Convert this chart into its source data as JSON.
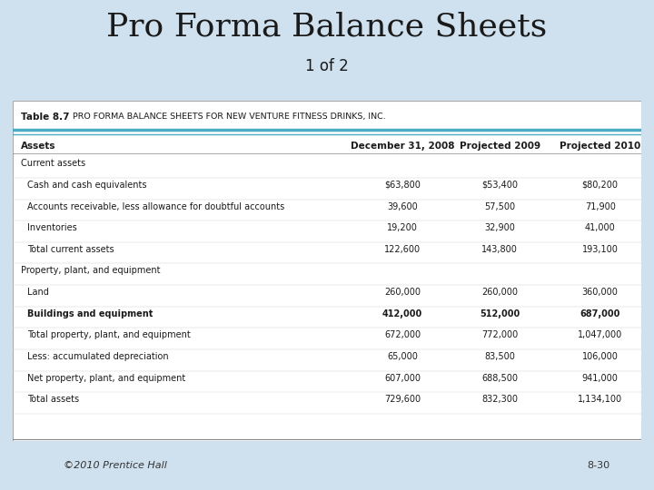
{
  "title": "Pro Forma Balance Sheets",
  "subtitle": "1 of 2",
  "table_label": "Table 8.7",
  "table_title": "Pro Forma Balance Sheets for New Venture Fitness Drinks, Inc.",
  "col_headers": [
    "Assets",
    "December 31, 2008",
    "Projected 2009",
    "Projected 2010"
  ],
  "rows": [
    {
      "label": "Current assets",
      "vals": [
        "",
        "",
        ""
      ],
      "style": "section"
    },
    {
      "label": "Cash and cash equivalents",
      "vals": [
        "$63,800",
        "$53,400",
        "$80,200"
      ],
      "style": "dollar"
    },
    {
      "label": "Accounts receivable, less allowance for doubtful accounts",
      "vals": [
        "39,600",
        "57,500",
        "71,900"
      ],
      "style": "normal"
    },
    {
      "label": "Inventories",
      "vals": [
        "19,200",
        "32,900",
        "41,000"
      ],
      "style": "normal"
    },
    {
      "label": "Total current assets",
      "vals": [
        "122,600",
        "143,800",
        "193,100"
      ],
      "style": "total"
    },
    {
      "label": "Property, plant, and equipment",
      "vals": [
        "",
        "",
        ""
      ],
      "style": "section"
    },
    {
      "label": "Land",
      "vals": [
        "260,000",
        "260,000",
        "360,000"
      ],
      "style": "normal"
    },
    {
      "label": "Buildings and equipment",
      "vals": [
        "412,000",
        "512,000",
        "687,000"
      ],
      "style": "bold"
    },
    {
      "label": "Total property, plant, and equipment",
      "vals": [
        "672,000",
        "772,000",
        "1,047,000"
      ],
      "style": "total"
    },
    {
      "label": "Less: accumulated depreciation",
      "vals": [
        "65,000",
        "83,500",
        "106,000"
      ],
      "style": "normal"
    },
    {
      "label": "Net property, plant, and equipment",
      "vals": [
        "607,000",
        "688,500",
        "941,000"
      ],
      "style": "normal"
    },
    {
      "label": "Total assets",
      "vals": [
        "729,600",
        "832,300",
        "1,134,100"
      ],
      "style": "total"
    }
  ],
  "bg_color": "#cfe0ee",
  "table_bg": "#ffffff",
  "header_line_color": "#4bacc6",
  "title_color": "#1a1a1a",
  "rust_color": "#8B3A2A",
  "footer_left": "©2010 Prentice Hall",
  "footer_right": "8-30"
}
